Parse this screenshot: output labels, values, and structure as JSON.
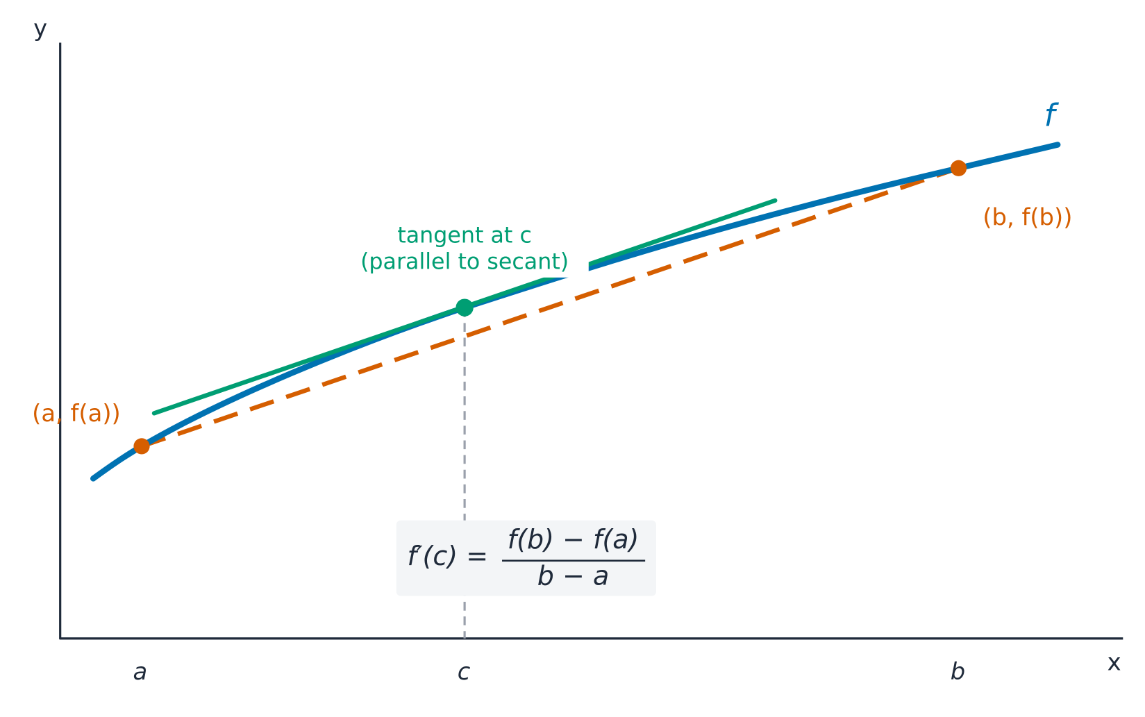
{
  "axes": {
    "x_label": "x",
    "y_label": "y",
    "x_ticks": [
      "a",
      "c",
      "b"
    ]
  },
  "curve": {
    "label": "f"
  },
  "points": {
    "a": "(a, f(a))",
    "b": "(b, f(b))"
  },
  "tangent": {
    "line1": "tangent at c",
    "line2": "(parallel to secant)"
  },
  "formula": {
    "lhs": "f′(c) =",
    "numerator": "f(b) − f(a)",
    "denominator": "b − a"
  }
}
